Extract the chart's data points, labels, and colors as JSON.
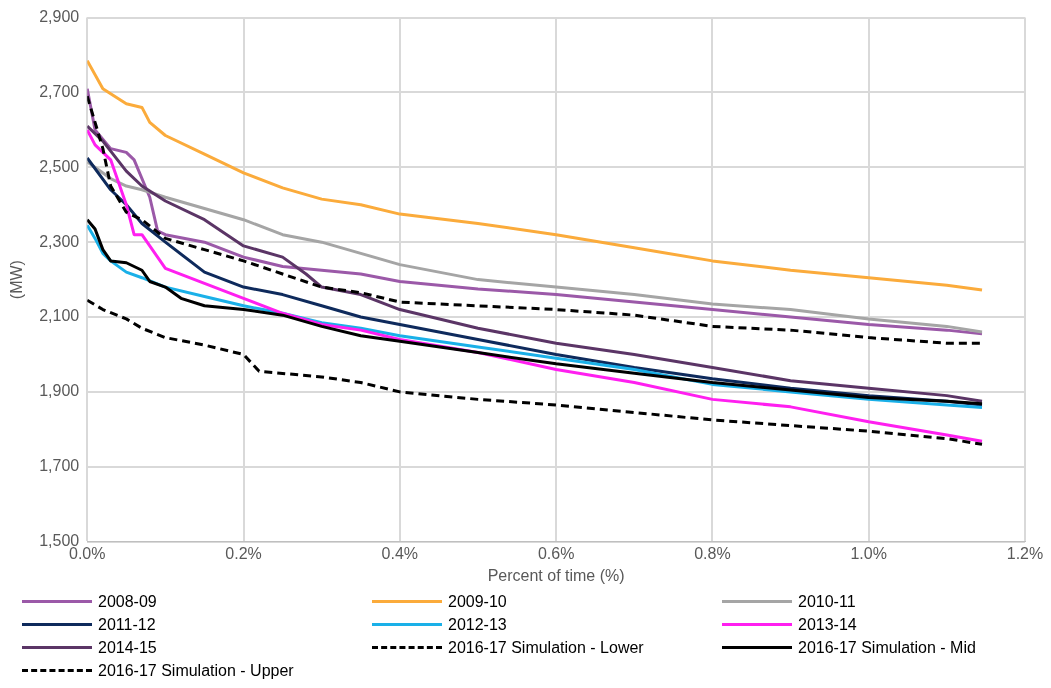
{
  "chart_data": {
    "type": "line",
    "xlabel": "Percent of time (%)",
    "ylabel": "(MW)",
    "xlim": [
      0,
      1.2
    ],
    "ylim": [
      1500,
      2900
    ],
    "xticks": [
      {
        "value": 0,
        "label": "0.0%"
      },
      {
        "value": 0.2,
        "label": "0.2%"
      },
      {
        "value": 0.4,
        "label": "0.4%"
      },
      {
        "value": 0.6,
        "label": "0.6%"
      },
      {
        "value": 0.8,
        "label": "0.8%"
      },
      {
        "value": 1.0,
        "label": "1.0%"
      },
      {
        "value": 1.2,
        "label": "1.2%"
      }
    ],
    "yticks": [
      {
        "value": 1500,
        "label": "1,500"
      },
      {
        "value": 1700,
        "label": "1,700"
      },
      {
        "value": 1900,
        "label": "1,900"
      },
      {
        "value": 2100,
        "label": "2,100"
      },
      {
        "value": 2300,
        "label": "2,300"
      },
      {
        "value": 2500,
        "label": "2,500"
      },
      {
        "value": 2700,
        "label": "2,700"
      },
      {
        "value": 2900,
        "label": "2,900"
      }
    ],
    "grid": true,
    "legend": "bottom",
    "marker": "none",
    "series": [
      {
        "name": "2008-09",
        "color": "#9b59a8",
        "x": [
          0,
          0.01,
          0.03,
          0.05,
          0.06,
          0.08,
          0.09,
          0.1,
          0.15,
          0.2,
          0.25,
          0.3,
          0.35,
          0.4,
          0.5,
          0.6,
          0.7,
          0.8,
          0.9,
          1.0,
          1.1,
          1.145
        ],
        "values": [
          2710,
          2600,
          2550,
          2540,
          2520,
          2420,
          2330,
          2320,
          2300,
          2260,
          2235,
          2225,
          2215,
          2195,
          2175,
          2160,
          2140,
          2120,
          2100,
          2080,
          2065,
          2055
        ]
      },
      {
        "name": "2009-10",
        "color": "#fbab3b",
        "x": [
          0,
          0.02,
          0.05,
          0.07,
          0.08,
          0.1,
          0.15,
          0.2,
          0.25,
          0.3,
          0.35,
          0.4,
          0.5,
          0.6,
          0.7,
          0.8,
          0.9,
          1.0,
          1.1,
          1.145
        ],
        "values": [
          2785,
          2710,
          2670,
          2660,
          2620,
          2585,
          2535,
          2485,
          2445,
          2415,
          2400,
          2375,
          2350,
          2320,
          2285,
          2250,
          2225,
          2205,
          2185,
          2172
        ]
      },
      {
        "name": "2010-11",
        "color": "#a5a5a5",
        "x": [
          0,
          0.03,
          0.05,
          0.07,
          0.1,
          0.15,
          0.2,
          0.25,
          0.3,
          0.35,
          0.4,
          0.5,
          0.6,
          0.7,
          0.8,
          0.9,
          1.0,
          1.1,
          1.145
        ],
        "values": [
          2515,
          2470,
          2450,
          2440,
          2420,
          2390,
          2360,
          2320,
          2300,
          2270,
          2240,
          2200,
          2180,
          2160,
          2135,
          2120,
          2095,
          2075,
          2060
        ]
      },
      {
        "name": "2011-12",
        "color": "#0e2a5c",
        "x": [
          0,
          0.03,
          0.05,
          0.07,
          0.1,
          0.15,
          0.2,
          0.25,
          0.3,
          0.35,
          0.4,
          0.5,
          0.6,
          0.7,
          0.8,
          0.9,
          1.0,
          1.1,
          1.145
        ],
        "values": [
          2525,
          2440,
          2400,
          2350,
          2300,
          2220,
          2180,
          2160,
          2130,
          2100,
          2080,
          2040,
          2000,
          1965,
          1935,
          1910,
          1890,
          1875,
          1865
        ]
      },
      {
        "name": "2012-13",
        "color": "#1ab0e8",
        "x": [
          0,
          0.01,
          0.02,
          0.03,
          0.05,
          0.07,
          0.1,
          0.15,
          0.2,
          0.25,
          0.3,
          0.35,
          0.4,
          0.5,
          0.6,
          0.7,
          0.8,
          0.9,
          1.0,
          1.1,
          1.145
        ],
        "values": [
          2345,
          2310,
          2270,
          2250,
          2220,
          2205,
          2180,
          2155,
          2130,
          2110,
          2085,
          2070,
          2050,
          2020,
          1990,
          1960,
          1920,
          1900,
          1880,
          1865,
          1858
        ]
      },
      {
        "name": "2013-14",
        "color": "#ff1ff0",
        "x": [
          0,
          0.01,
          0.03,
          0.05,
          0.06,
          0.07,
          0.08,
          0.1,
          0.15,
          0.2,
          0.25,
          0.3,
          0.35,
          0.4,
          0.5,
          0.6,
          0.7,
          0.8,
          0.9,
          1.0,
          1.1,
          1.145
        ],
        "values": [
          2600,
          2560,
          2520,
          2400,
          2320,
          2320,
          2290,
          2230,
          2190,
          2150,
          2110,
          2080,
          2065,
          2040,
          2005,
          1960,
          1925,
          1880,
          1860,
          1820,
          1785,
          1768
        ]
      },
      {
        "name": "2014-15",
        "color": "#5b3566",
        "x": [
          0,
          0.02,
          0.05,
          0.07,
          0.1,
          0.15,
          0.2,
          0.25,
          0.28,
          0.3,
          0.35,
          0.4,
          0.5,
          0.6,
          0.7,
          0.8,
          0.9,
          1.0,
          1.1,
          1.145
        ],
        "values": [
          2610,
          2570,
          2490,
          2450,
          2410,
          2360,
          2290,
          2260,
          2215,
          2180,
          2160,
          2120,
          2070,
          2030,
          2000,
          1965,
          1930,
          1910,
          1890,
          1875
        ]
      },
      {
        "name": "2016-17 Simulation - Lower",
        "color": "#000000",
        "line_style": "dashed",
        "x": [
          0,
          0.02,
          0.05,
          0.07,
          0.1,
          0.15,
          0.2,
          0.22,
          0.3,
          0.35,
          0.4,
          0.5,
          0.6,
          0.7,
          0.8,
          0.9,
          1.0,
          1.1,
          1.145
        ],
        "values": [
          2145,
          2120,
          2095,
          2070,
          2045,
          2025,
          2000,
          1955,
          1940,
          1925,
          1900,
          1880,
          1865,
          1845,
          1825,
          1810,
          1795,
          1775,
          1760
        ]
      },
      {
        "name": "2016-17 Simulation - Mid",
        "color": "#000000",
        "x": [
          0,
          0.01,
          0.02,
          0.03,
          0.05,
          0.07,
          0.08,
          0.1,
          0.12,
          0.15,
          0.2,
          0.25,
          0.3,
          0.35,
          0.4,
          0.5,
          0.6,
          0.7,
          0.8,
          0.9,
          1.0,
          1.1,
          1.145
        ],
        "values": [
          2360,
          2335,
          2280,
          2250,
          2245,
          2225,
          2195,
          2180,
          2150,
          2130,
          2120,
          2105,
          2075,
          2050,
          2035,
          2005,
          1975,
          1950,
          1925,
          1905,
          1885,
          1875,
          1868
        ]
      },
      {
        "name": "2016-17 Simulation - Upper",
        "color": "#000000",
        "line_style": "dashed",
        "x": [
          0,
          0.01,
          0.02,
          0.03,
          0.05,
          0.07,
          0.1,
          0.15,
          0.2,
          0.25,
          0.3,
          0.35,
          0.4,
          0.5,
          0.6,
          0.7,
          0.8,
          0.9,
          1.0,
          1.1,
          1.145
        ],
        "values": [
          2690,
          2620,
          2550,
          2450,
          2380,
          2360,
          2310,
          2280,
          2250,
          2215,
          2180,
          2165,
          2140,
          2130,
          2120,
          2105,
          2075,
          2065,
          2045,
          2030,
          2030
        ]
      }
    ]
  }
}
